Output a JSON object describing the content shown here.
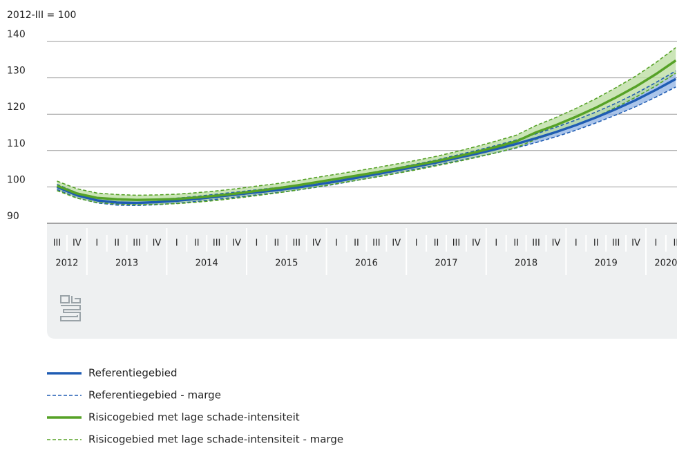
{
  "chart_data": {
    "type": "line",
    "title": "2012-III = 100",
    "categories": [
      "III",
      "IV",
      "I",
      "II",
      "III",
      "IV",
      "I",
      "II",
      "III",
      "IV",
      "I",
      "II",
      "III",
      "IV",
      "I",
      "II",
      "III",
      "IV",
      "I",
      "II",
      "III",
      "IV",
      "I",
      "II",
      "III",
      "IV",
      "I",
      "II",
      "III",
      "IV",
      "I",
      "II"
    ],
    "years": [
      "2012",
      "2013",
      "2014",
      "2015",
      "2016",
      "2017",
      "2018",
      "2019",
      "2020"
    ],
    "ylim": [
      90,
      140
    ],
    "yticks": [
      90,
      100,
      110,
      120,
      130,
      140
    ],
    "grid": true,
    "series": [
      {
        "name": "Referentiegebied",
        "color": "#1f5cb3",
        "band_color": "#8fb1e3",
        "values": [
          100,
          97.7,
          96.3,
          95.7,
          95.6,
          95.8,
          96.2,
          96.7,
          97.3,
          97.9,
          98.5,
          99.1,
          99.8,
          100.6,
          101.5,
          102.5,
          103.5,
          104.5,
          105.6,
          106.7,
          107.9,
          109.1,
          110.4,
          111.8,
          113.4,
          115.1,
          117,
          119.1,
          121.4,
          123.9,
          126.7,
          129.7
        ],
        "margin": {
          "name": "Referentiegebied - marge",
          "upper": [
            100.7,
            98.4,
            97.0,
            96.4,
            96.3,
            96.5,
            96.9,
            97.4,
            98.0,
            98.6,
            99.2,
            99.8,
            100.5,
            101.3,
            102.2,
            103.2,
            104.2,
            105.2,
            106.3,
            107.4,
            108.7,
            110.0,
            111.4,
            112.9,
            114.6,
            116.4,
            118.4,
            120.6,
            123.0,
            125.7,
            128.7,
            131.9
          ],
          "lower": [
            99.3,
            97.0,
            95.6,
            95.0,
            94.9,
            95.1,
            95.5,
            96.0,
            96.6,
            97.2,
            97.8,
            98.4,
            99.1,
            99.9,
            100.8,
            101.8,
            102.8,
            103.8,
            104.9,
            106.0,
            107.1,
            108.2,
            109.4,
            110.7,
            112.2,
            113.8,
            115.6,
            117.6,
            119.8,
            122.1,
            124.7,
            127.5
          ]
        }
      },
      {
        "name": "Risicogebied met lage schade-intensiteit",
        "color": "#56a227",
        "band_color": "#b9dc9f",
        "values": [
          100.3,
          98.2,
          97.0,
          96.6,
          96.4,
          96.5,
          96.7,
          97.1,
          97.6,
          98.2,
          98.9,
          99.6,
          100.4,
          101.3,
          102.2,
          103.1,
          104.0,
          105.0,
          106.0,
          107.1,
          108.3,
          109.6,
          111.0,
          112.5,
          115.0,
          117.0,
          119.3,
          121.8,
          124.6,
          127.6,
          131.0,
          134.8
        ],
        "margin": {
          "name": "Risicogebied met lage schade-intensiteit - marge",
          "upper": [
            101.6,
            99.5,
            98.3,
            97.9,
            97.7,
            97.8,
            98.0,
            98.4,
            98.9,
            99.5,
            100.2,
            100.9,
            101.7,
            102.6,
            103.5,
            104.4,
            105.3,
            106.3,
            107.3,
            108.4,
            109.7,
            111.1,
            112.6,
            114.2,
            116.9,
            119.1,
            121.6,
            124.3,
            127.3,
            130.5,
            134.2,
            138.3
          ],
          "lower": [
            99.0,
            96.9,
            95.7,
            95.3,
            95.1,
            95.2,
            95.4,
            95.8,
            96.3,
            96.9,
            97.6,
            98.3,
            99.1,
            100.0,
            100.9,
            101.8,
            102.7,
            103.7,
            104.7,
            105.8,
            106.9,
            108.1,
            109.4,
            110.8,
            113.1,
            114.9,
            117.0,
            119.3,
            121.9,
            124.7,
            127.8,
            131.3
          ]
        }
      }
    ]
  }
}
